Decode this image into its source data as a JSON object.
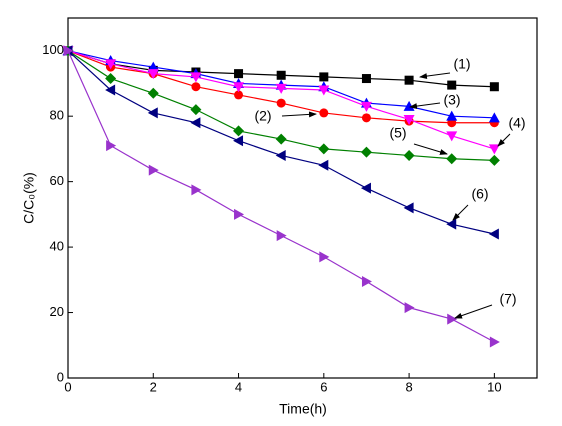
{
  "chart_data": {
    "type": "line",
    "xlabel": "Time(h)",
    "ylabel": "C/C₀(%)",
    "x": [
      0,
      1,
      2,
      3,
      4,
      5,
      6,
      7,
      8,
      9,
      10
    ],
    "xlim": [
      0,
      11
    ],
    "xticks": [
      0,
      2,
      4,
      6,
      8,
      10
    ],
    "ylim": [
      0,
      110
    ],
    "yticks": [
      0,
      20,
      40,
      60,
      80,
      100
    ],
    "series": [
      {
        "name": "(1)",
        "color": "#000000",
        "marker": "square",
        "values": [
          100,
          96,
          94,
          93.5,
          93,
          92.5,
          92,
          91.5,
          91,
          89.5,
          89
        ]
      },
      {
        "name": "(2)",
        "color": "#ff0000",
        "marker": "circle",
        "values": [
          100,
          95,
          93,
          89,
          86.5,
          84,
          81,
          79.5,
          78.5,
          78,
          78
        ]
      },
      {
        "name": "(3)",
        "color": "#0000ff",
        "marker": "up",
        "values": [
          100,
          97,
          95,
          93,
          90,
          89.5,
          89,
          84,
          83,
          80,
          79.5
        ]
      },
      {
        "name": "(4)",
        "color": "#ff00ff",
        "marker": "down",
        "values": [
          100,
          96,
          93,
          92,
          89,
          88.5,
          88,
          83,
          79,
          74,
          70
        ]
      },
      {
        "name": "(5)",
        "color": "#008000",
        "marker": "diamond",
        "values": [
          100,
          91.5,
          87,
          82,
          75.5,
          73,
          70,
          69,
          68,
          67,
          66.5
        ]
      },
      {
        "name": "(6)",
        "color": "#000080",
        "marker": "left",
        "values": [
          100,
          88,
          81,
          78,
          72.5,
          68,
          65,
          58,
          52,
          47,
          44
        ]
      },
      {
        "name": "(7)",
        "color": "#9933cc",
        "marker": "right",
        "values": [
          100,
          71,
          63.5,
          57.5,
          50,
          43.5,
          37,
          29.5,
          21.5,
          18,
          11
        ]
      }
    ]
  }
}
